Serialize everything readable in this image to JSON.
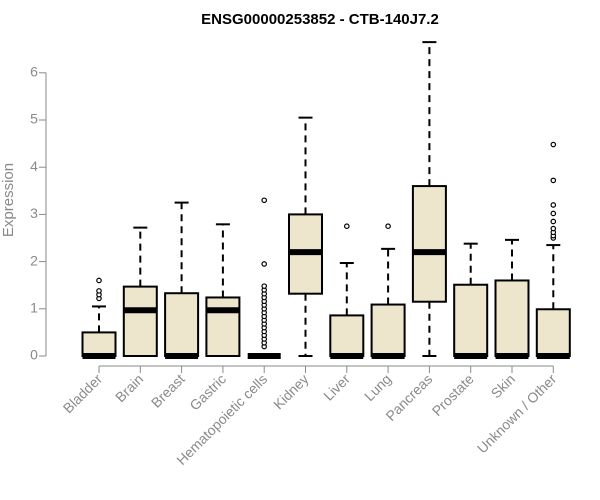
{
  "chart_data": {
    "type": "boxplot",
    "title": "ENSG00000253852 - CTB-140J7.2",
    "xlabel": "",
    "ylabel": "Expression",
    "ylim": [
      0,
      6.7
    ],
    "yticks": [
      0,
      1,
      2,
      3,
      4,
      5,
      6
    ],
    "ytick_labels": [
      "0",
      "1",
      "2",
      "3",
      "4",
      "5",
      "6"
    ],
    "grid": false,
    "box_fill": "#ede6cc",
    "box_stroke": "#000000",
    "axis_color": "#8a8a8a",
    "categories": [
      "Bladder",
      "Brain",
      "Breast",
      "Gastric",
      "Hematopoietic cells",
      "Kidney",
      "Liver",
      "Lung",
      "Pancreas",
      "Prostate",
      "Skin",
      "Unknown / Other"
    ],
    "boxes": [
      {
        "min": 0,
        "q1": 0,
        "median": 0,
        "q3": 0.5,
        "max": 1.05,
        "outliers": [
          1.22,
          1.3,
          1.38,
          1.6
        ]
      },
      {
        "min": 0,
        "q1": 0,
        "median": 0.97,
        "q3": 1.47,
        "max": 2.72,
        "outliers": []
      },
      {
        "min": 0,
        "q1": 0,
        "median": 0,
        "q3": 1.33,
        "max": 3.25,
        "outliers": []
      },
      {
        "min": 0,
        "q1": 0,
        "median": 0.97,
        "q3": 1.24,
        "max": 2.79,
        "outliers": []
      },
      {
        "min": 0,
        "q1": 0,
        "median": 0,
        "q3": 0,
        "max": 0,
        "outliers": [
          0.2,
          0.28,
          0.36,
          0.44,
          0.52,
          0.6,
          0.68,
          0.76,
          0.84,
          0.92,
          1.0,
          1.08,
          1.16,
          1.24,
          1.32,
          1.4,
          1.48,
          1.95,
          3.3
        ]
      },
      {
        "min": 0,
        "q1": 1.32,
        "median": 2.2,
        "q3": 3.0,
        "max": 5.05,
        "outliers": []
      },
      {
        "min": 0,
        "q1": 0,
        "median": 0,
        "q3": 0.86,
        "max": 1.97,
        "outliers": [
          2.75
        ]
      },
      {
        "min": 0,
        "q1": 0,
        "median": 0,
        "q3": 1.09,
        "max": 2.27,
        "outliers": [
          2.75
        ]
      },
      {
        "min": 0,
        "q1": 1.15,
        "median": 2.2,
        "q3": 3.6,
        "max": 6.65,
        "outliers": []
      },
      {
        "min": 0,
        "q1": 0,
        "median": 0,
        "q3": 1.51,
        "max": 2.38,
        "outliers": []
      },
      {
        "min": 0,
        "q1": 0,
        "median": 0,
        "q3": 1.6,
        "max": 2.46,
        "outliers": []
      },
      {
        "min": 0,
        "q1": 0,
        "median": 0,
        "q3": 0.99,
        "max": 2.35,
        "outliers": [
          2.5,
          2.55,
          2.62,
          2.7,
          2.85,
          3.02,
          3.2,
          3.72,
          4.48
        ]
      }
    ]
  }
}
